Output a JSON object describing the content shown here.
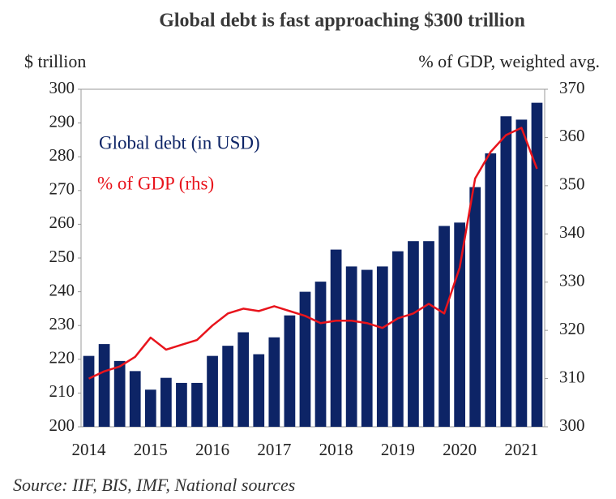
{
  "chart_data": {
    "type": "bar-line",
    "title": "Global debt is fast approaching $300 trillion",
    "y_label": "$ trillion",
    "y2_label": "% of GDP, weighted avg.",
    "source": "Source: IIF, BIS, IMF, National sources",
    "categories": [
      "2014",
      null,
      null,
      null,
      "2015",
      null,
      null,
      null,
      "2016",
      null,
      null,
      null,
      "2017",
      null,
      null,
      null,
      "2018",
      null,
      null,
      null,
      "2019",
      null,
      null,
      null,
      "2020",
      null,
      null,
      null,
      "2021",
      null
    ],
    "series": [
      {
        "name": "Global debt (in USD)",
        "type": "bar",
        "color": "#0d2466",
        "values": [
          221,
          224.5,
          219.5,
          216.5,
          211,
          214.5,
          213,
          213,
          221,
          224,
          228,
          221.5,
          226.5,
          233,
          240,
          243,
          252.5,
          247.5,
          246.5,
          247.5,
          252,
          255,
          255,
          259.5,
          260.5,
          271,
          281,
          292,
          291,
          296
        ]
      },
      {
        "name": "% of GDP (rhs)",
        "type": "line",
        "axis": "y2",
        "color": "#e8141c",
        "values": [
          310,
          311.5,
          312.5,
          314.5,
          318.5,
          316,
          317,
          318,
          321,
          323.5,
          324.5,
          324,
          325,
          324,
          323,
          321.5,
          322,
          322,
          321.5,
          320.5,
          322.5,
          323.5,
          325.5,
          323.5,
          333,
          351.5,
          357,
          360.5,
          362,
          353.5
        ]
      }
    ],
    "ylim": [
      200,
      300
    ],
    "yticks": [
      200,
      210,
      220,
      230,
      240,
      250,
      260,
      270,
      280,
      290,
      300
    ],
    "y2lim": [
      300,
      370
    ],
    "y2ticks": [
      300,
      310,
      320,
      330,
      340,
      350,
      360,
      370
    ],
    "grid": false
  }
}
